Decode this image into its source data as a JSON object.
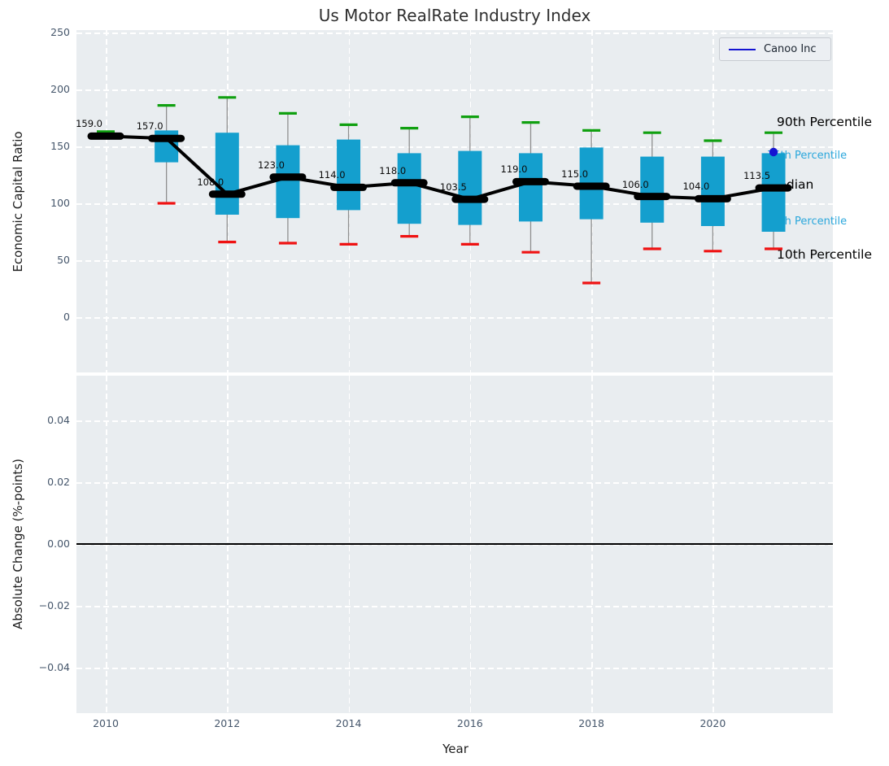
{
  "title": "Us Motor RealRate Industry Index",
  "colors": {
    "box_fill": "#149fce",
    "whisker_top_cap_green": "#10a010",
    "whisker_bottom_cap_red": "#ef1212",
    "median_black": "#000000",
    "company_blue": "#1414d2",
    "percentile_label_cyan": "#2ba7dc",
    "axes_background": "#e9edf0",
    "tick_label": "#45566b",
    "grid_white": "#ffffff"
  },
  "chart_data": {
    "type": "boxplot",
    "title": "Us Motor RealRate Industry Index",
    "xlabel": "Year",
    "xticks": [
      {
        "v": 2010,
        "label": "2010"
      },
      {
        "v": 2012,
        "label": "2012"
      },
      {
        "v": 2014,
        "label": "2014"
      },
      {
        "v": 2016,
        "label": "2016"
      },
      {
        "v": 2018,
        "label": "2018"
      },
      {
        "v": 2020,
        "label": "2020"
      }
    ],
    "legend": {
      "label": "Canoo Inc",
      "position": "upper right"
    },
    "top_panel": {
      "ylabel": "Economic Capital Ratio",
      "yticks": [
        {
          "v": 250,
          "label": "250"
        },
        {
          "v": 200,
          "label": "200"
        },
        {
          "v": 150,
          "label": "150"
        },
        {
          "v": 100,
          "label": "100"
        },
        {
          "v": 50,
          "label": "50"
        },
        {
          "v": 0,
          "label": "0"
        }
      ],
      "ylim": [
        -48,
        252
      ],
      "grid": true,
      "boxes": [
        {
          "year": 2010,
          "p10": null,
          "p25": null,
          "median": 159,
          "p75": null,
          "p90": 163,
          "median_label": "159.0"
        },
        {
          "year": 2011,
          "p10": 100,
          "p25": 136,
          "median": 157,
          "p75": 164,
          "p90": 186,
          "median_label": "157.0"
        },
        {
          "year": 2012,
          "p10": 66,
          "p25": 90,
          "median": 108,
          "p75": 162,
          "p90": 193,
          "median_label": "108.0"
        },
        {
          "year": 2013,
          "p10": 65,
          "p25": 87,
          "median": 123,
          "p75": 151,
          "p90": 179,
          "median_label": "123.0"
        },
        {
          "year": 2014,
          "p10": 64,
          "p25": 94,
          "median": 114,
          "p75": 156,
          "p90": 169,
          "median_label": "114.0"
        },
        {
          "year": 2015,
          "p10": 71,
          "p25": 82,
          "median": 118,
          "p75": 144,
          "p90": 166,
          "median_label": "118.0"
        },
        {
          "year": 2016,
          "p10": 64,
          "p25": 81,
          "median": 103.5,
          "p75": 146,
          "p90": 176,
          "median_label": "103.5"
        },
        {
          "year": 2017,
          "p10": 57,
          "p25": 84,
          "median": 119,
          "p75": 144,
          "p90": 171,
          "median_label": "119.0"
        },
        {
          "year": 2018,
          "p10": 30,
          "p25": 86,
          "median": 115,
          "p75": 149,
          "p90": 164,
          "median_label": "115.0"
        },
        {
          "year": 2019,
          "p10": 60,
          "p25": 83,
          "median": 106,
          "p75": 141,
          "p90": 162,
          "median_label": "106.0"
        },
        {
          "year": 2020,
          "p10": 58,
          "p25": 80,
          "median": 104,
          "p75": 141,
          "p90": 155,
          "median_label": "104.0"
        },
        {
          "year": 2021,
          "p10": 60,
          "p25": 75,
          "median": 113.5,
          "p75": 144,
          "p90": 162,
          "median_label": "113.5"
        }
      ],
      "company_point": {
        "name": "Canoo Inc",
        "year": 2021,
        "value": 145
      },
      "annotations": [
        {
          "text": "90th Percentile",
          "value": 170,
          "style": "black"
        },
        {
          "text": "75th Percentile",
          "value": 141,
          "style": "cyan"
        },
        {
          "text": "Median",
          "value": 115,
          "style": "black"
        },
        {
          "text": "25th Percentile",
          "value": 83,
          "style": "cyan"
        },
        {
          "text": "10th Percentile",
          "value": 54,
          "style": "black"
        }
      ]
    },
    "bottom_panel": {
      "ylabel": "Absolute Change (%-points)",
      "yticks": [
        {
          "v": 0.04,
          "label": "0.04"
        },
        {
          "v": 0.02,
          "label": "0.02"
        },
        {
          "v": 0,
          "label": "0.00"
        },
        {
          "v": -0.02,
          "label": "−0.02"
        },
        {
          "v": -0.04,
          "label": "−0.04"
        }
      ],
      "ylim": [
        -0.055,
        0.055
      ],
      "zero_line": 0
    }
  }
}
